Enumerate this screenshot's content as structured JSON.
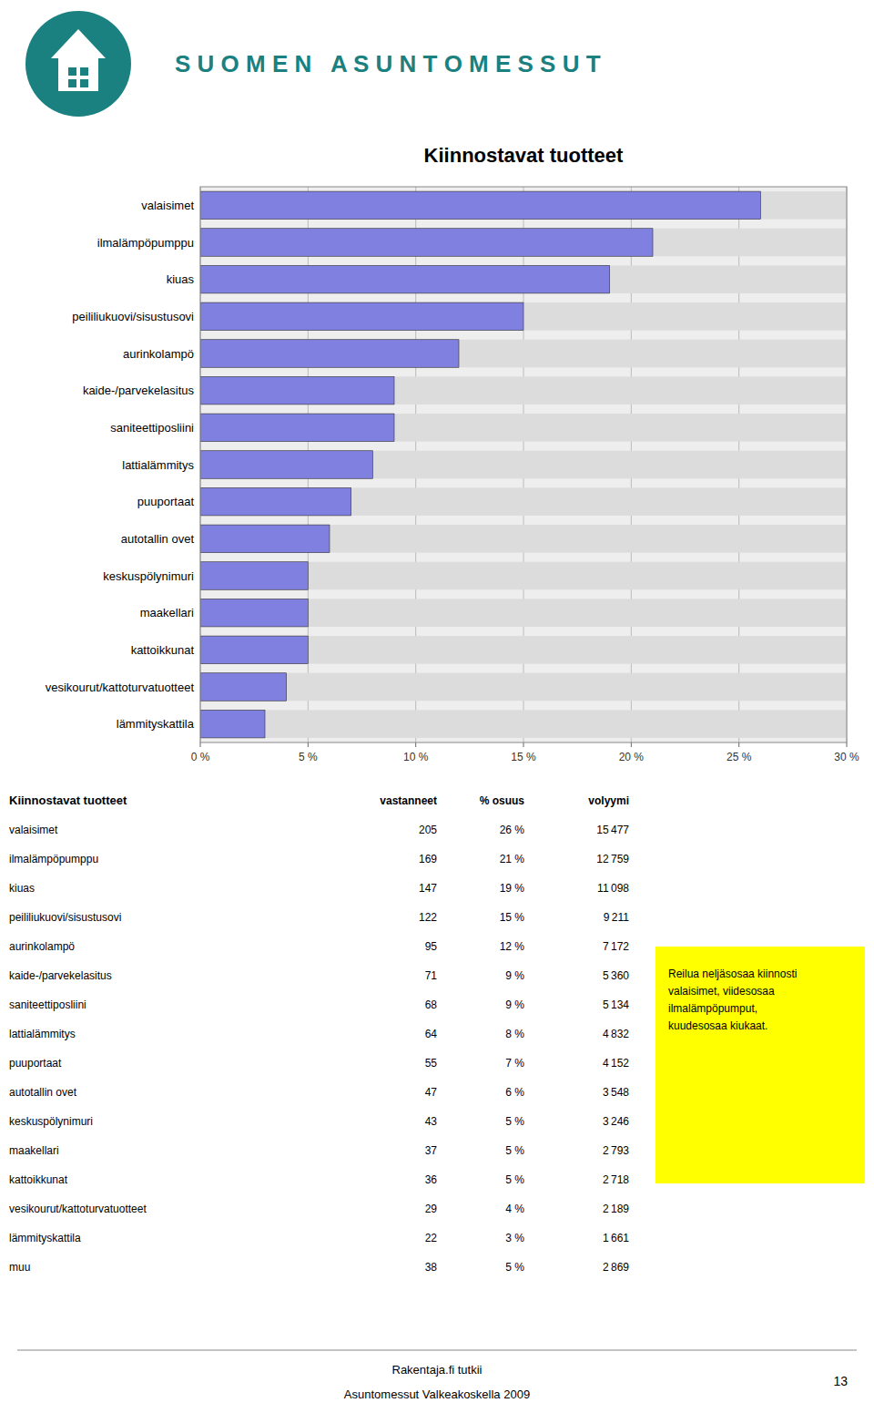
{
  "chart_data": [
    {
      "type": "bar",
      "orientation": "horizontal",
      "title": "Kiinnostavat tuotteet",
      "categories": [
        "valaisimet",
        "ilmalämpöpumppu",
        "kiuas",
        "peililiukuovi/sisustusovi",
        "aurinkolampö",
        "kaide-/parvekelasitus",
        "saniteettiposliini",
        "lattialämmitys",
        "puuportaat",
        "autotallin ovet",
        "keskuspölynimuri",
        "maakellari",
        "kattoikkunat",
        "vesikourut/kattoturvatuotteet",
        "lämmityskattila"
      ],
      "values": [
        26,
        21,
        19,
        15,
        12,
        9,
        9,
        8,
        7,
        6,
        5,
        5,
        5,
        4,
        3
      ],
      "color": "#8080e0",
      "xlim": [
        0,
        30
      ],
      "xticks": [
        {
          "value": 0,
          "label": "0 %"
        },
        {
          "value": 5,
          "label": "5 %"
        },
        {
          "value": 10,
          "label": "10 %"
        },
        {
          "value": 15,
          "label": "15 %"
        },
        {
          "value": 20,
          "label": "20 %"
        },
        {
          "value": 25,
          "label": "25 %"
        },
        {
          "value": 30,
          "label": "30 %"
        }
      ],
      "grid": true,
      "annotations": [
        "S U O M E N   A S U N T O M E S S U T",
        "Rakentaja.fi tutkii",
        "Asuntomessut Valkeakoskella 2009",
        "13"
      ]
    },
    {
      "type": "table",
      "title": "Kiinnostavat tuotteet",
      "categories": [
        "valaisimet",
        "ilmalämpöpumppu",
        "kiuas",
        "peililiukuovi/sisustusovi",
        "aurinkolampö",
        "kaide-/parvekelasitus",
        "saniteettiposliini",
        "lattialämmitys",
        "puuportaat",
        "autotallin ovet",
        "keskuspölynimuri",
        "maakellari",
        "kattoikkunat",
        "vesikourut/kattoturvatuotteet",
        "lämmityskattila",
        "muu"
      ],
      "series": [
        {
          "name": "vastanneet",
          "values": [
            205,
            169,
            147,
            122,
            95,
            71,
            68,
            64,
            55,
            47,
            43,
            37,
            36,
            29,
            22,
            38
          ]
        },
        {
          "name": "% osuus",
          "values": [
            26,
            21,
            19,
            15,
            12,
            9,
            9,
            8,
            7,
            6,
            5,
            5,
            5,
            4,
            3,
            5
          ],
          "value_labels": [
            "26 %",
            "21 %",
            "19 %",
            "15 %",
            "12 %",
            "9 %",
            "9 %",
            "8 %",
            "7 %",
            "6 %",
            "5 %",
            "5 %",
            "5 %",
            "4 %",
            "3 %",
            "5 %"
          ]
        },
        {
          "name": "volyymi",
          "values": [
            15477,
            12759,
            11098,
            9211,
            7172,
            5360,
            5134,
            4832,
            4152,
            3548,
            3246,
            2793,
            2718,
            2189,
            1661,
            2869
          ],
          "value_labels": [
            "15 477",
            "12 759",
            "11 098",
            "9 211",
            "7 172",
            "5 360",
            "5 134",
            "4 832",
            "4 152",
            "3 548",
            "3 246",
            "2 793",
            "2 718",
            "2 189",
            "1 661",
            "2 869"
          ]
        }
      ],
      "annotations": [
        "Reilua neljäsosaa kiinnosti\nvalaisimet, viidesosaa\nilmalämpöpumput,\nkuudesosaa kiukaat."
      ]
    }
  ]
}
